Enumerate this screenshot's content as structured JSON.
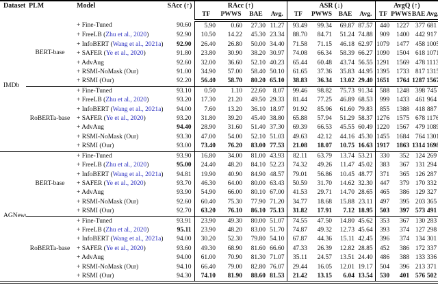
{
  "table": {
    "link_color": "#2b2fc0",
    "header": {
      "dataset": "Dataset",
      "plm": "PLM",
      "model": "Model",
      "sacc": "SAcc (↑)",
      "groups": [
        {
          "label": "RAcc (↑)"
        },
        {
          "label": "ASR (↓)"
        },
        {
          "label": "AvgQ (↑)"
        }
      ],
      "subcols": [
        "TF",
        "PWWS",
        "BAE",
        "Avg."
      ]
    },
    "datasets": [
      {
        "name": "IMDb",
        "plms": [
          {
            "name": "BERT-base",
            "rows": [
              {
                "model": "+ Fine-Tuned",
                "cite": null,
                "sacc": "90.60",
                "sacc_bold": false,
                "bold": false,
                "racc": [
                  "5.90",
                  "0.60",
                  "27.30",
                  "11.27"
                ],
                "asr": [
                  "93.49",
                  "99.34",
                  "69.87",
                  "87.57"
                ],
                "avgq": [
                  "440",
                  "1227",
                  "377",
                  "681"
                ]
              },
              {
                "model": "+ FreeLB",
                "cite": "Zhu et al., 2020",
                "sacc": "92.90",
                "sacc_bold": false,
                "bold": false,
                "racc": [
                  "10.50",
                  "14.22",
                  "45.30",
                  "23.34"
                ],
                "asr": [
                  "88.70",
                  "84.71",
                  "51.24",
                  "74.88"
                ],
                "avgq": [
                  "909",
                  "1400",
                  "442",
                  "917"
                ]
              },
              {
                "model": "+ InfoBERT",
                "cite": "Wang et al., 2021a",
                "sacc": "92.90",
                "sacc_bold": true,
                "bold": false,
                "racc": [
                  "26.40",
                  "26.80",
                  "50.00",
                  "34.40"
                ],
                "asr": [
                  "71.58",
                  "71.15",
                  "46.18",
                  "62.97"
                ],
                "avgq": [
                  "1079",
                  "1477",
                  "458",
                  "1005"
                ]
              },
              {
                "model": "+ SAFER",
                "cite": "Ye et al., 2020",
                "sacc": "91.80",
                "sacc_bold": false,
                "bold": false,
                "racc": [
                  "23.80",
                  "30.90",
                  "38.20",
                  "30.97"
                ],
                "asr": [
                  "74.08",
                  "66.34",
                  "58.39",
                  "66.27"
                ],
                "avgq": [
                  "1090",
                  "1504",
                  "618",
                  "1071"
                ]
              },
              {
                "model": "+ AdvAug",
                "cite": null,
                "sacc": "92.60",
                "sacc_bold": false,
                "bold": false,
                "racc": [
                  "32.00",
                  "36.60",
                  "52.10",
                  "40.23"
                ],
                "asr": [
                  "65.44",
                  "60.48",
                  "43.74",
                  "56.55"
                ],
                "avgq": [
                  "1291",
                  "1569",
                  "478",
                  "1113"
                ]
              },
              {
                "model": "+ RSMI-NoMask (Our)",
                "cite": null,
                "sacc": "91.00",
                "sacc_bold": false,
                "bold": false,
                "racc": [
                  "34.90",
                  "57.00",
                  "58.40",
                  "50.10"
                ],
                "asr": [
                  "61.65",
                  "37.36",
                  "35.83",
                  "44.95"
                ],
                "avgq": [
                  "1395",
                  "1733",
                  "817",
                  "1315"
                ]
              },
              {
                "model": "+ RSMI (Our)",
                "cite": null,
                "sacc": "92.20",
                "sacc_bold": false,
                "bold": true,
                "racc": [
                  "56.40",
                  "58.70",
                  "80.20",
                  "65.10"
                ],
                "asr": [
                  "38.83",
                  "36.34",
                  "13.02",
                  "29.40"
                ],
                "avgq": [
                  "1651",
                  "1764",
                  "1287",
                  "1567"
                ]
              }
            ]
          },
          {
            "name": "RoBERTa-base",
            "rows": [
              {
                "model": "+ Fine-Tuned",
                "cite": null,
                "sacc": "93.10",
                "sacc_bold": false,
                "bold": false,
                "racc": [
                  "0.50",
                  "1.10",
                  "22.60",
                  "8.07"
                ],
                "asr": [
                  "99.46",
                  "98.82",
                  "75.73",
                  "91.34"
                ],
                "avgq": [
                  "588",
                  "1248",
                  "398",
                  "745"
                ]
              },
              {
                "model": "+ FreeLB",
                "cite": "Zhu et al., 2020",
                "sacc": "93.20",
                "sacc_bold": false,
                "bold": false,
                "racc": [
                  "17.30",
                  "21.20",
                  "49.50",
                  "29.33"
                ],
                "asr": [
                  "81.44",
                  "77.25",
                  "46.89",
                  "68.53"
                ],
                "avgq": [
                  "999",
                  "1433",
                  "461",
                  "964"
                ]
              },
              {
                "model": "+ InfoBERT",
                "cite": "Wang et al., 2021a",
                "sacc": "94.00",
                "sacc_bold": false,
                "bold": false,
                "racc": [
                  "7.60",
                  "13.20",
                  "36.10",
                  "18.97"
                ],
                "asr": [
                  "91.92",
                  "85.96",
                  "61.60",
                  "79.83"
                ],
                "avgq": [
                  "855",
                  "1388",
                  "418",
                  "887"
                ]
              },
              {
                "model": "+ SAFER",
                "cite": "Ye et al., 2020",
                "sacc": "93.20",
                "sacc_bold": false,
                "bold": false,
                "racc": [
                  "31.80",
                  "39.20",
                  "45.40",
                  "38.80"
                ],
                "asr": [
                  "65.88",
                  "57.94",
                  "51.29",
                  "58.37"
                ],
                "avgq": [
                  "1276",
                  "1575",
                  "678",
                  "1176"
                ]
              },
              {
                "model": "+ AdvAug",
                "cite": null,
                "sacc": "94.40",
                "sacc_bold": true,
                "bold": false,
                "racc": [
                  "28.90",
                  "31.60",
                  "51.40",
                  "37.30"
                ],
                "asr": [
                  "69.39",
                  "66.53",
                  "45.55",
                  "60.49"
                ],
                "avgq": [
                  "1220",
                  "1567",
                  "479",
                  "1089"
                ]
              },
              {
                "model": "+ RSMI-NoMask (Our)",
                "cite": null,
                "sacc": "93.30",
                "sacc_bold": false,
                "bold": false,
                "racc": [
                  "47.00",
                  "54.00",
                  "52.10",
                  "51.03"
                ],
                "asr": [
                  "49.63",
                  "42.12",
                  "44.16",
                  "45.30"
                ],
                "avgq": [
                  "1455",
                  "1684",
                  "764",
                  "1301"
                ]
              },
              {
                "model": "+ RSMI (Our)",
                "cite": null,
                "sacc": "93.00",
                "sacc_bold": false,
                "bold": true,
                "racc": [
                  "73.40",
                  "76.20",
                  "83.00",
                  "77.53"
                ],
                "asr": [
                  "21.08",
                  "18.07",
                  "10.75",
                  "16.63"
                ],
                "avgq": [
                  "1917",
                  "1863",
                  "1314",
                  "1698"
                ]
              }
            ]
          }
        ]
      },
      {
        "name": "AGNews",
        "plms": [
          {
            "name": "BERT-base",
            "rows": [
              {
                "model": "+ Fine-Tuned",
                "cite": null,
                "sacc": "93.90",
                "sacc_bold": false,
                "bold": false,
                "racc": [
                  "16.80",
                  "34.00",
                  "81.00",
                  "43.93"
                ],
                "asr": [
                  "82.11",
                  "63.79",
                  "13.74",
                  "53.21"
                ],
                "avgq": [
                  "330",
                  "352",
                  "124",
                  "269"
                ]
              },
              {
                "model": "+ FreeLB",
                "cite": "Zhu et al., 2020",
                "sacc": "95.00",
                "sacc_bold": true,
                "bold": false,
                "racc": [
                  "24.40",
                  "48.20",
                  "84.10",
                  "52.23"
                ],
                "asr": [
                  "74.32",
                  "49.26",
                  "11.47",
                  "45.02"
                ],
                "avgq": [
                  "383",
                  "367",
                  "131",
                  "294"
                ]
              },
              {
                "model": "+ InfoBERT",
                "cite": "Wang et al., 2021a",
                "sacc": "94.81",
                "sacc_bold": false,
                "bold": false,
                "racc": [
                  "19.90",
                  "40.90",
                  "84.90",
                  "48.57"
                ],
                "asr": [
                  "79.01",
                  "56.86",
                  "10.45",
                  "48.77"
                ],
                "avgq": [
                  "371",
                  "365",
                  "126",
                  "287"
                ]
              },
              {
                "model": "+ SAFER",
                "cite": "Ye et al., 2020",
                "sacc": "93.70",
                "sacc_bold": false,
                "bold": false,
                "racc": [
                  "46.30",
                  "64.00",
                  "80.00",
                  "63.43"
                ],
                "asr": [
                  "50.59",
                  "31.70",
                  "14.62",
                  "32.30"
                ],
                "avgq": [
                  "447",
                  "379",
                  "170",
                  "332"
                ]
              },
              {
                "model": "+ AdvAug",
                "cite": null,
                "sacc": "93.90",
                "sacc_bold": false,
                "bold": false,
                "racc": [
                  "54.90",
                  "66.00",
                  "80.10",
                  "67.00"
                ],
                "asr": [
                  "41.53",
                  "29.71",
                  "14.70",
                  "28.65"
                ],
                "avgq": [
                  "465",
                  "386",
                  "129",
                  "327"
                ]
              },
              {
                "model": "+ RSMI-NoMask (Our)",
                "cite": null,
                "sacc": "92.60",
                "sacc_bold": false,
                "bold": false,
                "racc": [
                  "60.40",
                  "75.30",
                  "77.90",
                  "71.20"
                ],
                "asr": [
                  "34.77",
                  "18.68",
                  "15.88",
                  "23.11"
                ],
                "avgq": [
                  "497",
                  "395",
                  "203",
                  "365"
                ]
              },
              {
                "model": "+ RSMI (Our)",
                "cite": null,
                "sacc": "92.70",
                "sacc_bold": false,
                "bold": true,
                "racc": [
                  "63.20",
                  "76.10",
                  "86.10",
                  "75.13"
                ],
                "asr": [
                  "31.82",
                  "17.91",
                  "7.12",
                  "18.95"
                ],
                "avgq": [
                  "503",
                  "397",
                  "573",
                  "491"
                ]
              }
            ]
          },
          {
            "name": "RoBERTa-base",
            "rows": [
              {
                "model": "+ Fine-Tuned",
                "cite": null,
                "sacc": "93.91",
                "sacc_bold": false,
                "bold": false,
                "racc": [
                  "23.90",
                  "49.30",
                  "80.00",
                  "51.07"
                ],
                "asr": [
                  "74.55",
                  "47.50",
                  "14.80",
                  "45.62"
                ],
                "avgq": [
                  "353",
                  "367",
                  "130",
                  "283"
                ]
              },
              {
                "model": "+ FreeLB",
                "cite": "Zhu et al., 2020",
                "sacc": "95.11",
                "sacc_bold": true,
                "bold": false,
                "racc": [
                  "23.90",
                  "48.20",
                  "83.00",
                  "51.70"
                ],
                "asr": [
                  "74.87",
                  "49.32",
                  "12.73",
                  "45.64"
                ],
                "avgq": [
                  "393",
                  "374",
                  "127",
                  "298"
                ]
              },
              {
                "model": "+ InfoBERT",
                "cite": "Wang et al., 2021a",
                "sacc": "94.00",
                "sacc_bold": false,
                "bold": false,
                "racc": [
                  "30.20",
                  "52.30",
                  "79.80",
                  "54.10"
                ],
                "asr": [
                  "67.87",
                  "44.36",
                  "15.11",
                  "42.45"
                ],
                "avgq": [
                  "396",
                  "374",
                  "134",
                  "301"
                ]
              },
              {
                "model": "+ SAFER",
                "cite": "Ye et al., 2020",
                "sacc": "93.60",
                "sacc_bold": false,
                "bold": false,
                "racc": [
                  "49.30",
                  "68.90",
                  "81.60",
                  "66.60"
                ],
                "asr": [
                  "47.33",
                  "26.39",
                  "12.82",
                  "28.85"
                ],
                "avgq": [
                  "452",
                  "386",
                  "172",
                  "337"
                ]
              },
              {
                "model": "+ AdvAug",
                "cite": null,
                "sacc": "94.00",
                "sacc_bold": false,
                "bold": false,
                "racc": [
                  "61.00",
                  "70.90",
                  "81.30",
                  "71.07"
                ],
                "asr": [
                  "35.11",
                  "24.57",
                  "13.51",
                  "24.40"
                ],
                "avgq": [
                  "486",
                  "388",
                  "133",
                  "336"
                ]
              },
              {
                "model": "+ RSMI-NoMask (Our)",
                "cite": null,
                "sacc": "94.10",
                "sacc_bold": false,
                "bold": false,
                "racc": [
                  "66.40",
                  "79.00",
                  "82.80",
                  "76.07"
                ],
                "asr": [
                  "29.44",
                  "16.05",
                  "12.01",
                  "19.17"
                ],
                "avgq": [
                  "504",
                  "396",
                  "213",
                  "371"
                ]
              },
              {
                "model": "+ RSMI (Our)",
                "cite": null,
                "sacc": "94.30",
                "sacc_bold": false,
                "bold": true,
                "racc": [
                  "74.10",
                  "81.90",
                  "88.60",
                  "81.53"
                ],
                "asr": [
                  "21.42",
                  "13.15",
                  "6.04",
                  "13.54"
                ],
                "avgq": [
                  "530",
                  "401",
                  "576",
                  "502"
                ]
              }
            ]
          }
        ]
      }
    ]
  }
}
